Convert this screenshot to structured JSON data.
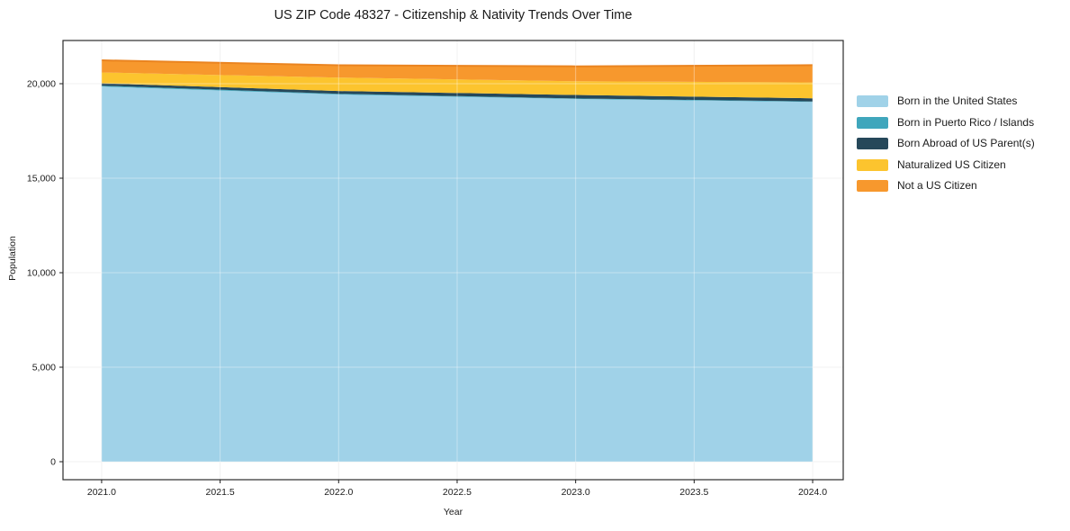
{
  "figure": {
    "background": "#ffffff"
  },
  "chart_data": {
    "type": "area",
    "stacked": true,
    "title": "US ZIP Code 48327 - Citizenship & Nativity Trends Over Time",
    "xlabel": "Year",
    "ylabel": "Population",
    "x": [
      2021,
      2022,
      2023,
      2024
    ],
    "series": [
      {
        "name": "Born in the United States",
        "color": "#a0d2e8",
        "values": [
          19855,
          19430,
          19190,
          19035
        ]
      },
      {
        "name": "Born in Puerto Rico / Islands",
        "color": "#3fa6bc",
        "values": [
          40,
          35,
          30,
          25
        ]
      },
      {
        "name": "Born Abroad of US Parent(s)",
        "color": "#26485a",
        "values": [
          130,
          150,
          185,
          170
        ]
      },
      {
        "name": "Naturalized US Citizen",
        "color": "#fcc42e",
        "values": [
          570,
          710,
          725,
          835
        ]
      },
      {
        "name": "Not a US Citizen",
        "color": "#f7982d",
        "values": [
          645,
          650,
          790,
          915
        ]
      }
    ],
    "top_edge_color": "#ea8420",
    "xticks": [
      2021.0,
      2021.5,
      2022.0,
      2022.5,
      2023.0,
      2023.5,
      2024.0
    ],
    "xtick_labels": [
      "2021.0",
      "2021.5",
      "2022.0",
      "2022.5",
      "2023.0",
      "2023.5",
      "2024.0"
    ],
    "yticks": [
      0,
      5000,
      10000,
      15000,
      20000
    ],
    "ytick_labels": [
      "0",
      "5,000",
      "10,000",
      "15,000",
      "20,000"
    ],
    "xlim": [
      2020.837,
      2024.129
    ],
    "ylim": [
      -952,
      22286
    ],
    "grid": true,
    "grid_color_under": "#ebebeb",
    "grid_color_over": "rgba(255,255,255,0.38)",
    "spine_color": "#2b2b2b",
    "tick_color": "#1c1c1c",
    "legend_position": "right"
  }
}
